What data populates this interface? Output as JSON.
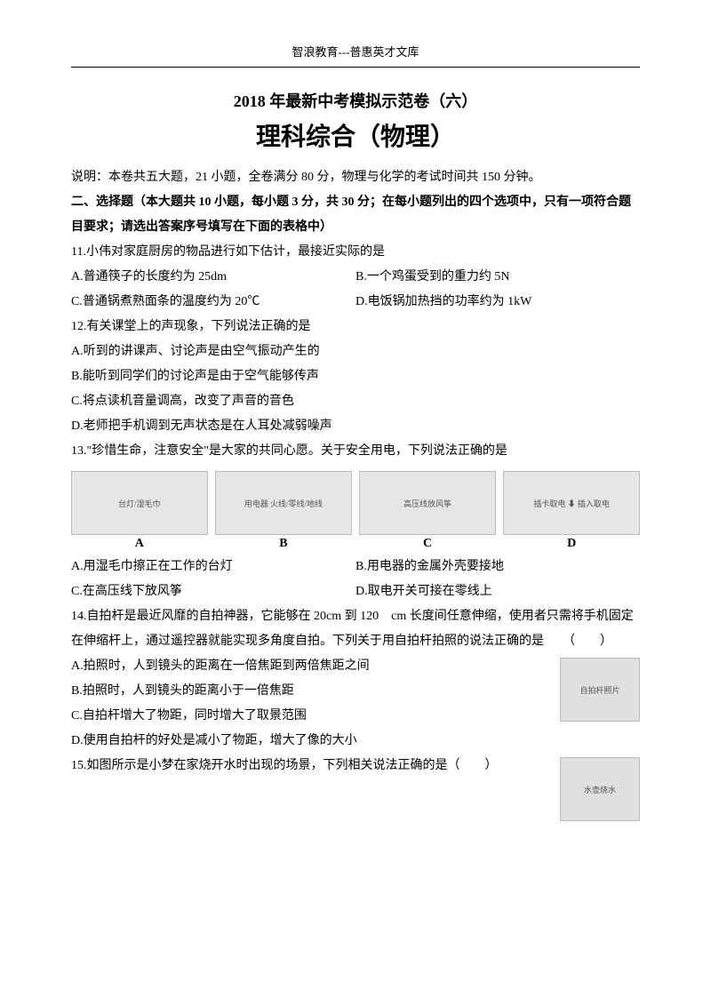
{
  "header": "智浪教育---普惠英才文库",
  "title_line1": "2018 年最新中考模拟示范卷（六）",
  "title_line2": "理科综合（物理）",
  "intro": "说明：本卷共五大题，21 小题，全卷满分 80 分，物理与化学的考试时间共 150 分钟。",
  "section2_head": "二、选择题（本大题共 10 小题，每小题 3 分，共 30 分；在每小题列出的四个选项中，只有一项符合题目要求；请选出答案序号填写在下面的表格中）",
  "q11": {
    "stem": "11.小伟对家庭厨房的物品进行如下估计，最接近实际的是",
    "a": "A.普通筷子的长度约为 25dm",
    "b": "B.一个鸡蛋受到的重力约 5N",
    "c": "C.普通锅煮熟面条的温度约为 20℃",
    "d": "D.电饭锅加热挡的功率约为 1kW"
  },
  "q12": {
    "stem": "12.有关课堂上的声现象，下列说法正确的是",
    "a": "A.听到的讲课声、讨论声是由空气振动产生的",
    "b": "B.能听到同学们的讨论声是由于空气能够传声",
    "c": "C.将点读机音量调高，改变了声音的音色",
    "d": "D.老师把手机调到无声状态是在人耳处减弱噪声"
  },
  "q13": {
    "stem": "13.\"珍惜生命，注意安全\"是大家的共同心愿。关于安全用电，下列说法正确的是",
    "img_a": "台灯/湿毛巾",
    "label_a": "A",
    "img_b": "用电器 火线/零线/地线",
    "label_b": "B",
    "img_c": "高压线放风筝",
    "label_c": "C",
    "img_d": "插卡取电 ⬇ 插入取电",
    "label_d": "D",
    "a": "A.用湿毛巾擦正在工作的台灯",
    "b": "B.用电器的金属外壳要接地",
    "c": "C.在高压线下放风筝",
    "d": "D.取电开关可接在零线上"
  },
  "q14": {
    "stem": "14.自拍杆是最近风靡的自拍神器，它能够在 20cm 到 120　cm 长度间任意伸缩，使用者只需将手机固定在伸缩杆上，通过遥控器就能实现多角度自拍。下列关于用自拍杆拍照的说法正确的是　　（　　）",
    "img": "自拍杆照片",
    "a": "A.拍照时，人到镜头的距离在一倍焦距到两倍焦距之间",
    "b": "B.拍照时，人到镜头的距离小于一倍焦距",
    "c": "C.自拍杆增大了物距，同时增大了取景范围",
    "d": "D.使用自拍杆的好处是减小了物距，增大了像的大小"
  },
  "q15": {
    "stem": "15.如图所示是小梦在家烧开水时出现的场景，下列相关说法正确的是（　　）",
    "img": "水壶烧水"
  }
}
